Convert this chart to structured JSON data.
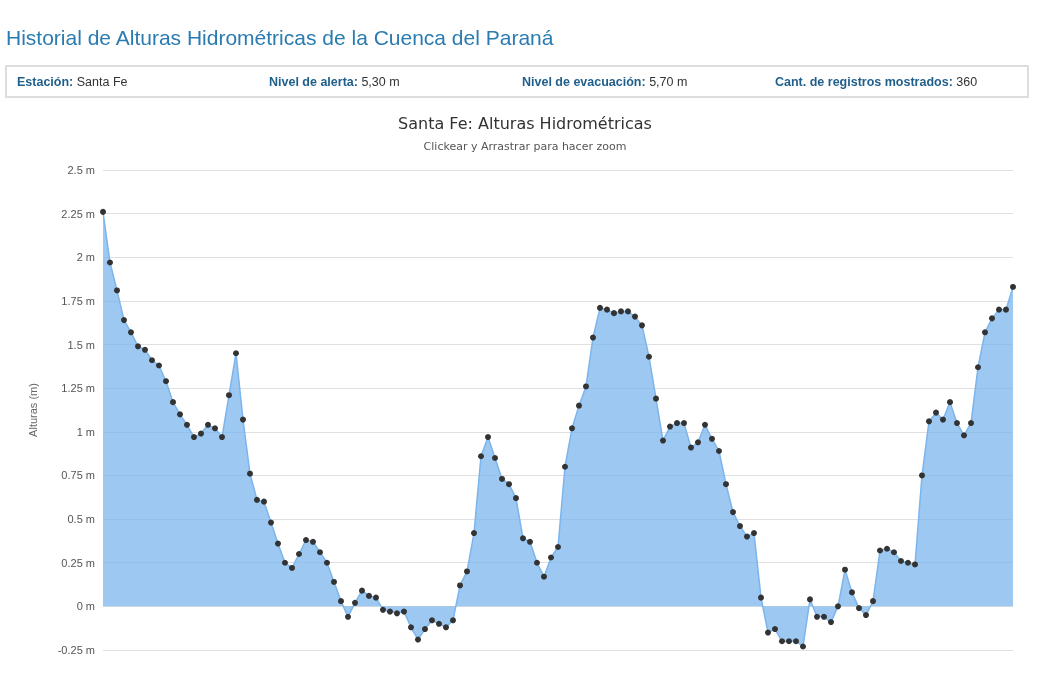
{
  "chart_data": {
    "type": "area",
    "title": "Historial de Alturas Hidrométricas de la Cuenca del Paraná",
    "subtitle": "Santa Fe: Alturas Hidrométricas",
    "ylabel": "Alturas (m)",
    "annotations": [
      "Estación: Santa Fe",
      "Nivel de alerta: 5,30 m",
      "Nivel de evacuación: 5,70 m",
      "Cant. de registros mostrados: 360",
      "Clickear y Arrastrar para hacer zoom"
    ],
    "categories": [
      null,
      null,
      null,
      null,
      null,
      null,
      null,
      null,
      null,
      null,
      null,
      null,
      null,
      null,
      null,
      null,
      null,
      null,
      null,
      null,
      null,
      null,
      null,
      null,
      null,
      null,
      null,
      null,
      null,
      null,
      null,
      null,
      null,
      null,
      null,
      null,
      null,
      null,
      null,
      null,
      null,
      null,
      null,
      null,
      null,
      null,
      null,
      null,
      null,
      null,
      null,
      null,
      null,
      null,
      null,
      null,
      null,
      null,
      null,
      null,
      null,
      null,
      null,
      null,
      null,
      null,
      null,
      null,
      null,
      null,
      null,
      null,
      null,
      null,
      null,
      null,
      null,
      null,
      null,
      null,
      null,
      null,
      null,
      null,
      null,
      null,
      null,
      null,
      null,
      null,
      null,
      null,
      null,
      null,
      null,
      null,
      null,
      null,
      null,
      null,
      null,
      null,
      null,
      null,
      null,
      null,
      null,
      null,
      null,
      null,
      null,
      null,
      null,
      null,
      null,
      null,
      null,
      null,
      null,
      null,
      null,
      null,
      null,
      null,
      null,
      null,
      null,
      null,
      null,
      null,
      null
    ],
    "series": [
      {
        "color": "#7cb5ec",
        "values": [
          2.26,
          1.97,
          1.81,
          1.64,
          1.57,
          1.49,
          1.47,
          1.41,
          1.38,
          1.29,
          1.17,
          1.1,
          1.04,
          0.97,
          0.99,
          1.04,
          1.02,
          0.97,
          1.21,
          1.45,
          1.07,
          0.76,
          0.61,
          0.6,
          0.48,
          0.36,
          0.25,
          0.22,
          0.3,
          0.38,
          0.37,
          0.31,
          0.25,
          0.14,
          0.03,
          -0.06,
          0.02,
          0.09,
          0.06,
          0.05,
          -0.02,
          -0.03,
          -0.04,
          -0.03,
          -0.12,
          -0.19,
          -0.13,
          -0.08,
          -0.1,
          -0.12,
          -0.08,
          0.12,
          0.2,
          0.42,
          0.86,
          0.97,
          0.85,
          0.73,
          0.7,
          0.62,
          0.39,
          0.37,
          0.25,
          0.17,
          0.28,
          0.34,
          0.8,
          1.02,
          1.15,
          1.26,
          1.54,
          1.71,
          1.7,
          1.68,
          1.69,
          1.69,
          1.66,
          1.61,
          1.43,
          1.19,
          0.95,
          1.03,
          1.05,
          1.05,
          0.91,
          0.94,
          1.04,
          0.96,
          0.89,
          0.7,
          0.54,
          0.46,
          0.4,
          0.42,
          0.05,
          -0.15,
          -0.13,
          -0.2,
          -0.2,
          -0.2,
          -0.23,
          0.04,
          -0.06,
          -0.06,
          -0.09,
          0.0,
          0.21,
          0.08,
          -0.01,
          -0.05,
          0.03,
          0.32,
          0.33,
          0.31,
          0.26,
          0.25,
          0.24,
          0.75,
          1.06,
          1.11,
          1.07,
          1.17,
          1.05,
          0.98,
          1.05,
          1.37,
          1.57,
          1.65,
          1.7,
          1.7,
          1.83
        ]
      }
    ],
    "ylim": [
      -0.25,
      2.5
    ],
    "yticks": [
      {
        "value": -0.25,
        "label": "-0.25 m"
      },
      {
        "value": 0,
        "label": "0 m"
      },
      {
        "value": 0.25,
        "label": "0.25 m"
      },
      {
        "value": 0.5,
        "label": "0.5 m"
      },
      {
        "value": 0.75,
        "label": "0.75 m"
      },
      {
        "value": 1,
        "label": "1 m"
      },
      {
        "value": 1.25,
        "label": "1.25 m"
      },
      {
        "value": 1.5,
        "label": "1.5 m"
      },
      {
        "value": 1.75,
        "label": "1.75 m"
      },
      {
        "value": 2,
        "label": "2 m"
      },
      {
        "value": 2.25,
        "label": "2.25 m"
      },
      {
        "value": 2.5,
        "label": "2.5 m"
      }
    ],
    "grid": "y",
    "marker": "circle",
    "tick_labels": "y"
  }
}
